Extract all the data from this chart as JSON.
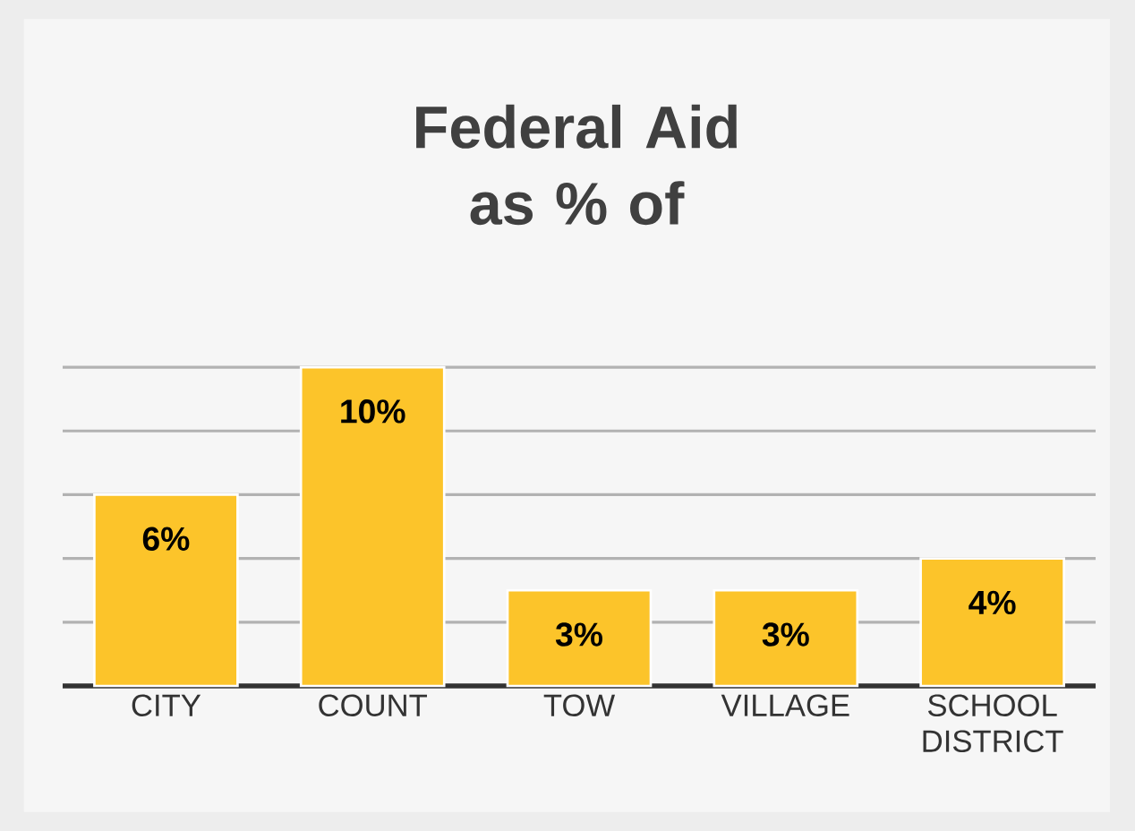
{
  "chart_data": {
    "type": "bar",
    "title": "Federal Aid as % of",
    "categories": [
      "CITY",
      "COUNT",
      "TOW",
      "VILLAGE",
      "SCHOOL DISTRICT"
    ],
    "values": [
      6,
      10,
      3,
      3,
      4
    ],
    "value_labels": [
      "6%",
      "10%",
      "3%",
      "3%",
      "4%"
    ],
    "color": "#fcc42a",
    "grid": "y",
    "tick_labels": "x"
  }
}
